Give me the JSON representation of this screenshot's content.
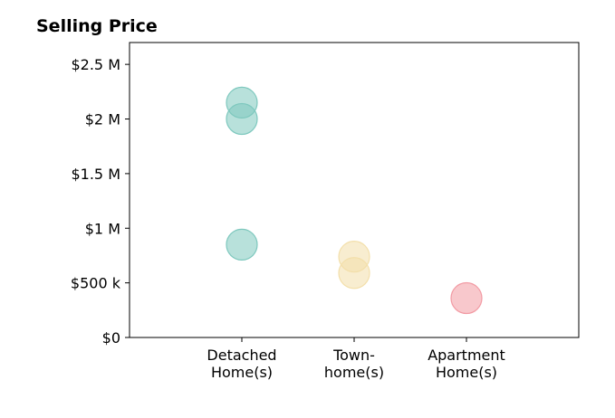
{
  "chart_data": {
    "type": "scatter",
    "title": "Selling Price",
    "xlabel": "",
    "ylabel": "",
    "categories": [
      [
        "Detached",
        "Home(s)"
      ],
      [
        "Town-",
        "home(s)"
      ],
      [
        "Apartment",
        "Home(s)"
      ]
    ],
    "ylim": [
      0,
      2700000
    ],
    "yticks": [
      0,
      500000,
      1000000,
      1500000,
      2000000,
      2500000
    ],
    "ytick_labels": [
      "$0",
      "$500 k",
      "$1 M",
      "$1.5 M",
      "$2 M",
      "$2.5 M"
    ],
    "grid": false,
    "series": [
      {
        "category_index": 0,
        "color": "#7ec8be",
        "values": [
          2150000,
          2000000,
          850000
        ]
      },
      {
        "category_index": 1,
        "color": "#f3dfaa",
        "values": [
          740000,
          590000
        ]
      },
      {
        "category_index": 2,
        "color": "#f29aa3",
        "values": [
          360000
        ]
      }
    ]
  }
}
